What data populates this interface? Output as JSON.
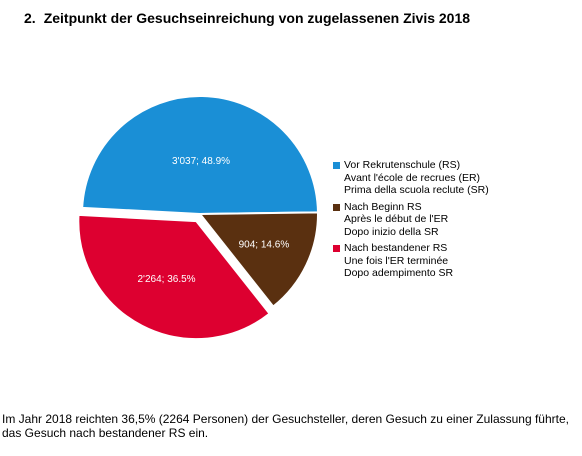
{
  "heading": {
    "number": "2.",
    "title": "Zeitpunkt der Gesuchseinreichung von zugelassenen Zivis 2018"
  },
  "chart_data": {
    "type": "pie",
    "title": "Zeitpunkt der Gesuchseinreichung von zugelassenen Zivis 2018",
    "slices": [
      {
        "label": "3'037; 48.9%",
        "value": 3037,
        "percent": 48.9,
        "color": "#1a8fd6",
        "legend": [
          "Vor Rekrutenschule (RS)",
          "Avant l'école de recrues (ER)",
          "Prima della scuola reclute (SR)"
        ]
      },
      {
        "label": "904; 14.6%",
        "value": 904,
        "percent": 14.6,
        "color": "#5a3010",
        "legend": [
          "Nach Beginn RS",
          "Après le début de l'ER",
          "Dopo inizio della SR"
        ]
      },
      {
        "label": "2'264; 36.5%",
        "value": 2264,
        "percent": 36.5,
        "color": "#dd0030",
        "legend": [
          "Nach bestandener RS",
          "Une fois l'ER terminée",
          "Dopo adempimento SR"
        ]
      }
    ],
    "legend_position": "right"
  },
  "footer": {
    "text": "Im Jahr 2018 reichten 36,5% (2264 Personen) der Gesuchsteller, deren Gesuch zu einer Zulassung führte, das Gesuch nach bestandener RS ein."
  }
}
